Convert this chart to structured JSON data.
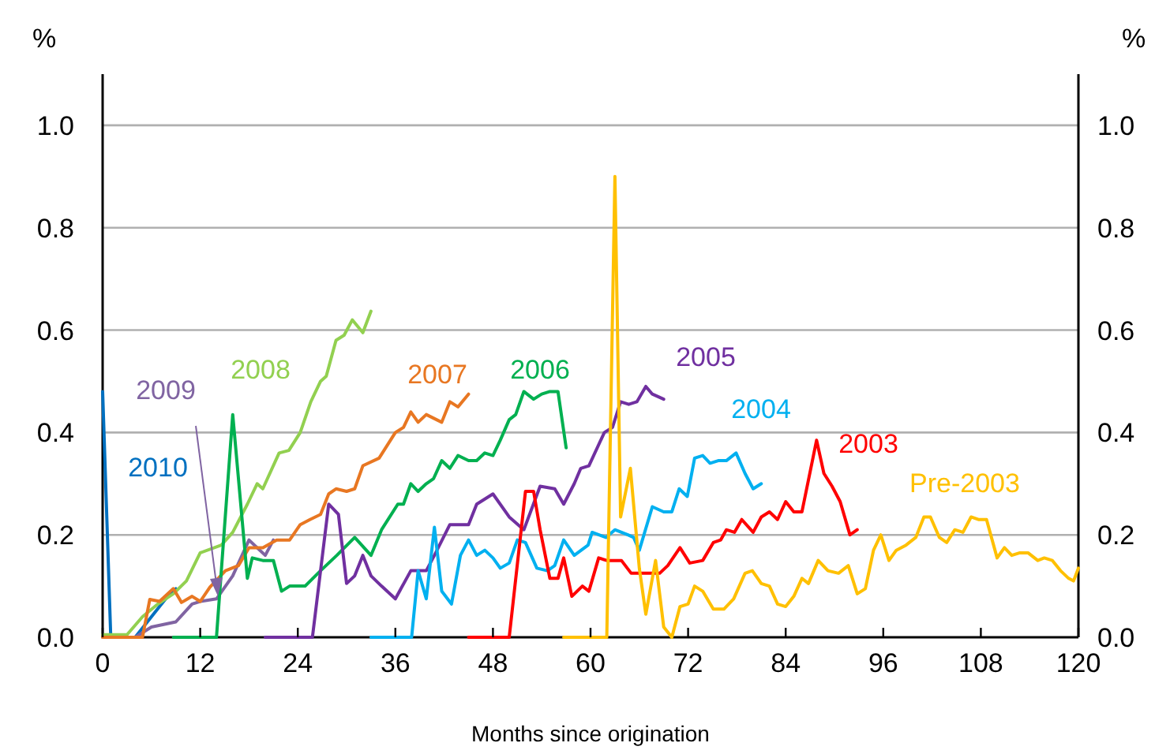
{
  "chart_data": {
    "type": "line",
    "xlabel": "Months since origination",
    "ylabel": "%",
    "y2label": "%",
    "xlim": [
      0,
      120
    ],
    "xticks": [
      0,
      12,
      24,
      36,
      48,
      60,
      72,
      84,
      96,
      108,
      120
    ],
    "ylim": [
      0,
      1.1
    ],
    "yticks": [
      {
        "value": 0,
        "label": "0.0"
      },
      {
        "value": 0.2,
        "label": "0.2"
      },
      {
        "value": 0.4,
        "label": "0.4"
      },
      {
        "value": 0.6,
        "label": "0.6"
      },
      {
        "value": 0.8,
        "label": "0.8"
      },
      {
        "value": 1.0,
        "label": "1.0"
      }
    ],
    "y2lim": [
      0,
      1.1
    ],
    "y2ticks": [
      {
        "value": 0,
        "label": "0.0"
      },
      {
        "value": 0.2,
        "label": "0.2"
      },
      {
        "value": 0.4,
        "label": "0.4"
      },
      {
        "value": 0.6,
        "label": "0.6"
      },
      {
        "value": 0.8,
        "label": "0.8"
      },
      {
        "value": 1.0,
        "label": "1.0"
      }
    ],
    "grid": "y",
    "legend": false,
    "marker": "none",
    "line_style": "solid",
    "series": [
      {
        "name": "2010",
        "color": "#0070c0",
        "x": [
          0,
          1,
          2,
          3,
          4,
          5,
          6,
          7,
          8,
          9
        ],
        "values": [
          0.48,
          0,
          0,
          0,
          0,
          0.02,
          0.04,
          0.06,
          0.08,
          0.095
        ]
      },
      {
        "name": "2009",
        "color": "#8064a2",
        "x": [
          0,
          2,
          4,
          6,
          9,
          11,
          12,
          14,
          16,
          18,
          20,
          21
        ],
        "values": [
          0,
          0,
          0,
          0.02,
          0.03,
          0.065,
          0.07,
          0.075,
          0.12,
          0.19,
          0.16,
          0.19
        ]
      },
      {
        "name": "2008",
        "color": "#92d050",
        "x": [
          0,
          3,
          4.9,
          6.8,
          8.7,
          10.3,
          12,
          14.6,
          16,
          17.8,
          19,
          19.7,
          21.7,
          22.9,
          24.3,
          25.6,
          26.8,
          27.5,
          28.7,
          29.7,
          30.7,
          32,
          33
        ],
        "values": [
          0.005,
          0.005,
          0.04,
          0.065,
          0.085,
          0.11,
          0.165,
          0.18,
          0.205,
          0.26,
          0.3,
          0.29,
          0.36,
          0.365,
          0.4,
          0.46,
          0.5,
          0.51,
          0.58,
          0.59,
          0.62,
          0.595,
          0.637
        ]
      },
      {
        "name": "2007",
        "color": "#e87722",
        "x": [
          0,
          4.9,
          5.8,
          7,
          8.7,
          9.7,
          11,
          12,
          13.2,
          15.1,
          16.7,
          18,
          19.7,
          21.4,
          23,
          24.3,
          25.5,
          26.8,
          27.8,
          28.7,
          30,
          31,
          32,
          34,
          36,
          37,
          37.9,
          38.8,
          39.8,
          41.7,
          42.7,
          43.7,
          45
        ],
        "values": [
          0,
          0,
          0.074,
          0.07,
          0.095,
          0.068,
          0.08,
          0.07,
          0.098,
          0.13,
          0.14,
          0.175,
          0.175,
          0.19,
          0.19,
          0.22,
          0.23,
          0.24,
          0.28,
          0.29,
          0.285,
          0.29,
          0.335,
          0.35,
          0.4,
          0.41,
          0.44,
          0.42,
          0.435,
          0.42,
          0.46,
          0.45,
          0.475
        ]
      },
      {
        "name": "2006",
        "color": "#00b050",
        "x": [
          8.7,
          14,
          16,
          17.8,
          18.4,
          19.7,
          21,
          22,
          23,
          24.9,
          26.8,
          28.8,
          31,
          33,
          34.3,
          36.3,
          37,
          37.9,
          38.8,
          39.8,
          40.7,
          41.7,
          42.7,
          43.7,
          45,
          46,
          47,
          48,
          48.9,
          50,
          50.8,
          51.8,
          53,
          54,
          55,
          56,
          57
        ],
        "values": [
          0,
          0,
          0.435,
          0.115,
          0.155,
          0.15,
          0.15,
          0.09,
          0.1,
          0.1,
          0.13,
          0.16,
          0.195,
          0.16,
          0.21,
          0.26,
          0.26,
          0.3,
          0.285,
          0.3,
          0.31,
          0.345,
          0.33,
          0.355,
          0.345,
          0.345,
          0.36,
          0.355,
          0.385,
          0.425,
          0.435,
          0.48,
          0.465,
          0.475,
          0.48,
          0.48,
          0.37
        ]
      },
      {
        "name": "2005",
        "color": "#7030a0",
        "x": [
          20,
          25.8,
          27.8,
          29,
          30,
          31,
          32,
          33,
          34.3,
          36,
          37.9,
          39.8,
          40.8,
          42.7,
          45,
          46,
          48,
          50,
          51.8,
          53.8,
          55.6,
          56.7,
          58,
          58.8,
          59.8,
          61.7,
          62.7,
          63.7,
          64.7,
          65.7,
          66.8,
          67.6,
          69
        ],
        "values": [
          0,
          0,
          0.26,
          0.24,
          0.105,
          0.12,
          0.16,
          0.12,
          0.1,
          0.075,
          0.13,
          0.13,
          0.16,
          0.22,
          0.22,
          0.26,
          0.28,
          0.235,
          0.21,
          0.295,
          0.29,
          0.26,
          0.3,
          0.33,
          0.335,
          0.4,
          0.41,
          0.46,
          0.455,
          0.46,
          0.49,
          0.475,
          0.465
        ]
      },
      {
        "name": "2004",
        "color": "#00b0f0",
        "x": [
          33,
          38,
          38.8,
          39.8,
          40.8,
          41.7,
          42.9,
          44,
          45,
          46,
          47,
          48,
          48.9,
          50,
          51,
          52,
          53.4,
          54.7,
          55.6,
          56.7,
          58,
          59.7,
          60.2,
          61.9,
          63,
          64.6,
          65.3,
          66,
          67.6,
          69,
          70,
          70.9,
          71.9,
          72.8,
          73.8,
          74.7,
          75.7,
          76.7,
          77.9,
          79,
          80,
          81
        ],
        "values": [
          0,
          0,
          0.13,
          0.075,
          0.215,
          0.09,
          0.065,
          0.16,
          0.19,
          0.16,
          0.17,
          0.155,
          0.135,
          0.145,
          0.19,
          0.185,
          0.135,
          0.13,
          0.14,
          0.19,
          0.16,
          0.18,
          0.205,
          0.195,
          0.21,
          0.2,
          0.195,
          0.17,
          0.255,
          0.245,
          0.245,
          0.29,
          0.275,
          0.35,
          0.355,
          0.34,
          0.345,
          0.345,
          0.36,
          0.32,
          0.29,
          0.3
        ]
      },
      {
        "name": "2003",
        "color": "#ff0000",
        "x": [
          45,
          50,
          52,
          53,
          53.8,
          55,
          56,
          56.7,
          57.7,
          59,
          59.8,
          61,
          62,
          63.8,
          65,
          66.4,
          68.5,
          69.5,
          71,
          72.2,
          73.8,
          75.1,
          76,
          76.7,
          77.7,
          78.6,
          80,
          81,
          82,
          83,
          84,
          85,
          86,
          87.8,
          88.7,
          89.7,
          90.7,
          91.9,
          92.8
        ],
        "values": [
          0,
          0,
          0.285,
          0.285,
          0.21,
          0.115,
          0.115,
          0.155,
          0.08,
          0.1,
          0.09,
          0.155,
          0.15,
          0.15,
          0.125,
          0.125,
          0.125,
          0.14,
          0.175,
          0.145,
          0.15,
          0.185,
          0.19,
          0.21,
          0.205,
          0.23,
          0.205,
          0.235,
          0.245,
          0.23,
          0.265,
          0.245,
          0.245,
          0.385,
          0.32,
          0.295,
          0.265,
          0.2,
          0.21
        ]
      },
      {
        "name": "Pre-2003",
        "color": "#ffc000",
        "x": [
          56.7,
          62,
          63,
          63.7,
          64.9,
          66,
          66.8,
          68,
          69,
          70,
          71,
          72,
          72.8,
          73.8,
          75.1,
          76.4,
          77.6,
          79,
          79.9,
          81,
          82,
          83,
          84,
          85,
          86,
          86.8,
          88,
          89.2,
          90.5,
          91.7,
          92.8,
          93.8,
          94.8,
          95.7,
          96.7,
          97.6,
          98.8,
          100,
          101,
          101.8,
          102.9,
          103.8,
          104.8,
          105.8,
          106.8,
          107.7,
          108.7,
          110,
          110.9,
          111.8,
          112.8,
          113.8,
          115,
          115.8,
          116.8,
          117.8,
          118.8,
          119.4,
          120
        ],
        "values": [
          0,
          0,
          0.9,
          0.235,
          0.33,
          0.135,
          0.045,
          0.15,
          0.02,
          0,
          0.06,
          0.065,
          0.1,
          0.09,
          0.055,
          0.055,
          0.075,
          0.125,
          0.13,
          0.105,
          0.1,
          0.065,
          0.06,
          0.08,
          0.115,
          0.105,
          0.15,
          0.13,
          0.125,
          0.14,
          0.085,
          0.095,
          0.17,
          0.2,
          0.15,
          0.17,
          0.18,
          0.195,
          0.235,
          0.235,
          0.195,
          0.185,
          0.21,
          0.205,
          0.235,
          0.23,
          0.23,
          0.155,
          0.175,
          0.16,
          0.165,
          0.165,
          0.15,
          0.155,
          0.15,
          0.13,
          0.115,
          0.11,
          0.135
        ]
      }
    ]
  }
}
